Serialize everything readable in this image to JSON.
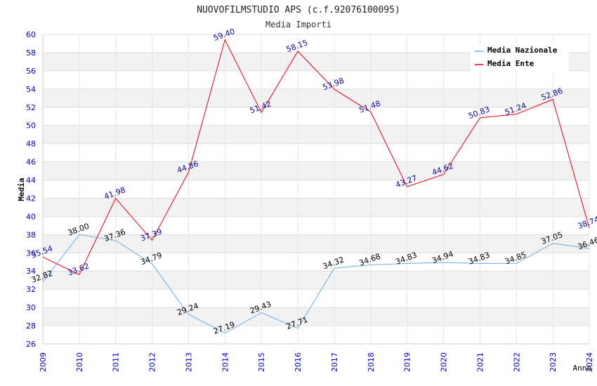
{
  "chart_data": {
    "type": "line",
    "title": "NUOVOFILMSTUDIO APS (c.f.92076100095)",
    "subtitle": "Media Importi",
    "xlabel": "Anno",
    "ylabel": "Media",
    "categories": [
      "2009",
      "2010",
      "2011",
      "2012",
      "2013",
      "2014",
      "2015",
      "2016",
      "2017",
      "2018",
      "2019",
      "2020",
      "2021",
      "2022",
      "2023",
      "2024"
    ],
    "ylim": [
      26,
      60
    ],
    "ystep": 2,
    "yticks": [
      "26",
      "28",
      "30",
      "32",
      "34",
      "36",
      "38",
      "40",
      "42",
      "44",
      "46",
      "48",
      "50",
      "52",
      "54",
      "56",
      "58",
      "60"
    ],
    "legend_position": "top-right",
    "series": [
      {
        "name": "Media Nazionale",
        "color": "#6aaee8",
        "label_color": "#000000",
        "values": [
          32.82,
          38.0,
          37.36,
          34.79,
          29.24,
          27.19,
          29.43,
          27.71,
          34.32,
          34.68,
          34.83,
          34.94,
          34.83,
          34.85,
          37.05,
          36.46
        ],
        "labels": [
          "32.82",
          "38.00",
          "37.36",
          "34.79",
          "29.24",
          "27.19",
          "29.43",
          "27.71",
          "34.32",
          "34.68",
          "34.83",
          "34.94",
          "34.83",
          "34.85",
          "37.05",
          "36.46"
        ]
      },
      {
        "name": "Media Ente",
        "color": "#e8000b",
        "label_color": "#0a0aa0",
        "values": [
          35.54,
          33.62,
          41.98,
          37.39,
          44.86,
          59.4,
          51.42,
          58.15,
          53.98,
          51.48,
          43.27,
          44.62,
          50.83,
          51.24,
          52.86,
          38.74
        ],
        "labels": [
          "35.54",
          "33.62",
          "41.98",
          "37.39",
          "44.86",
          "59.40",
          "51.42",
          "58.15",
          "53.98",
          "51.48",
          "43.27",
          "44.62",
          "50.83",
          "51.24",
          "52.86",
          "38.74"
        ]
      }
    ]
  }
}
